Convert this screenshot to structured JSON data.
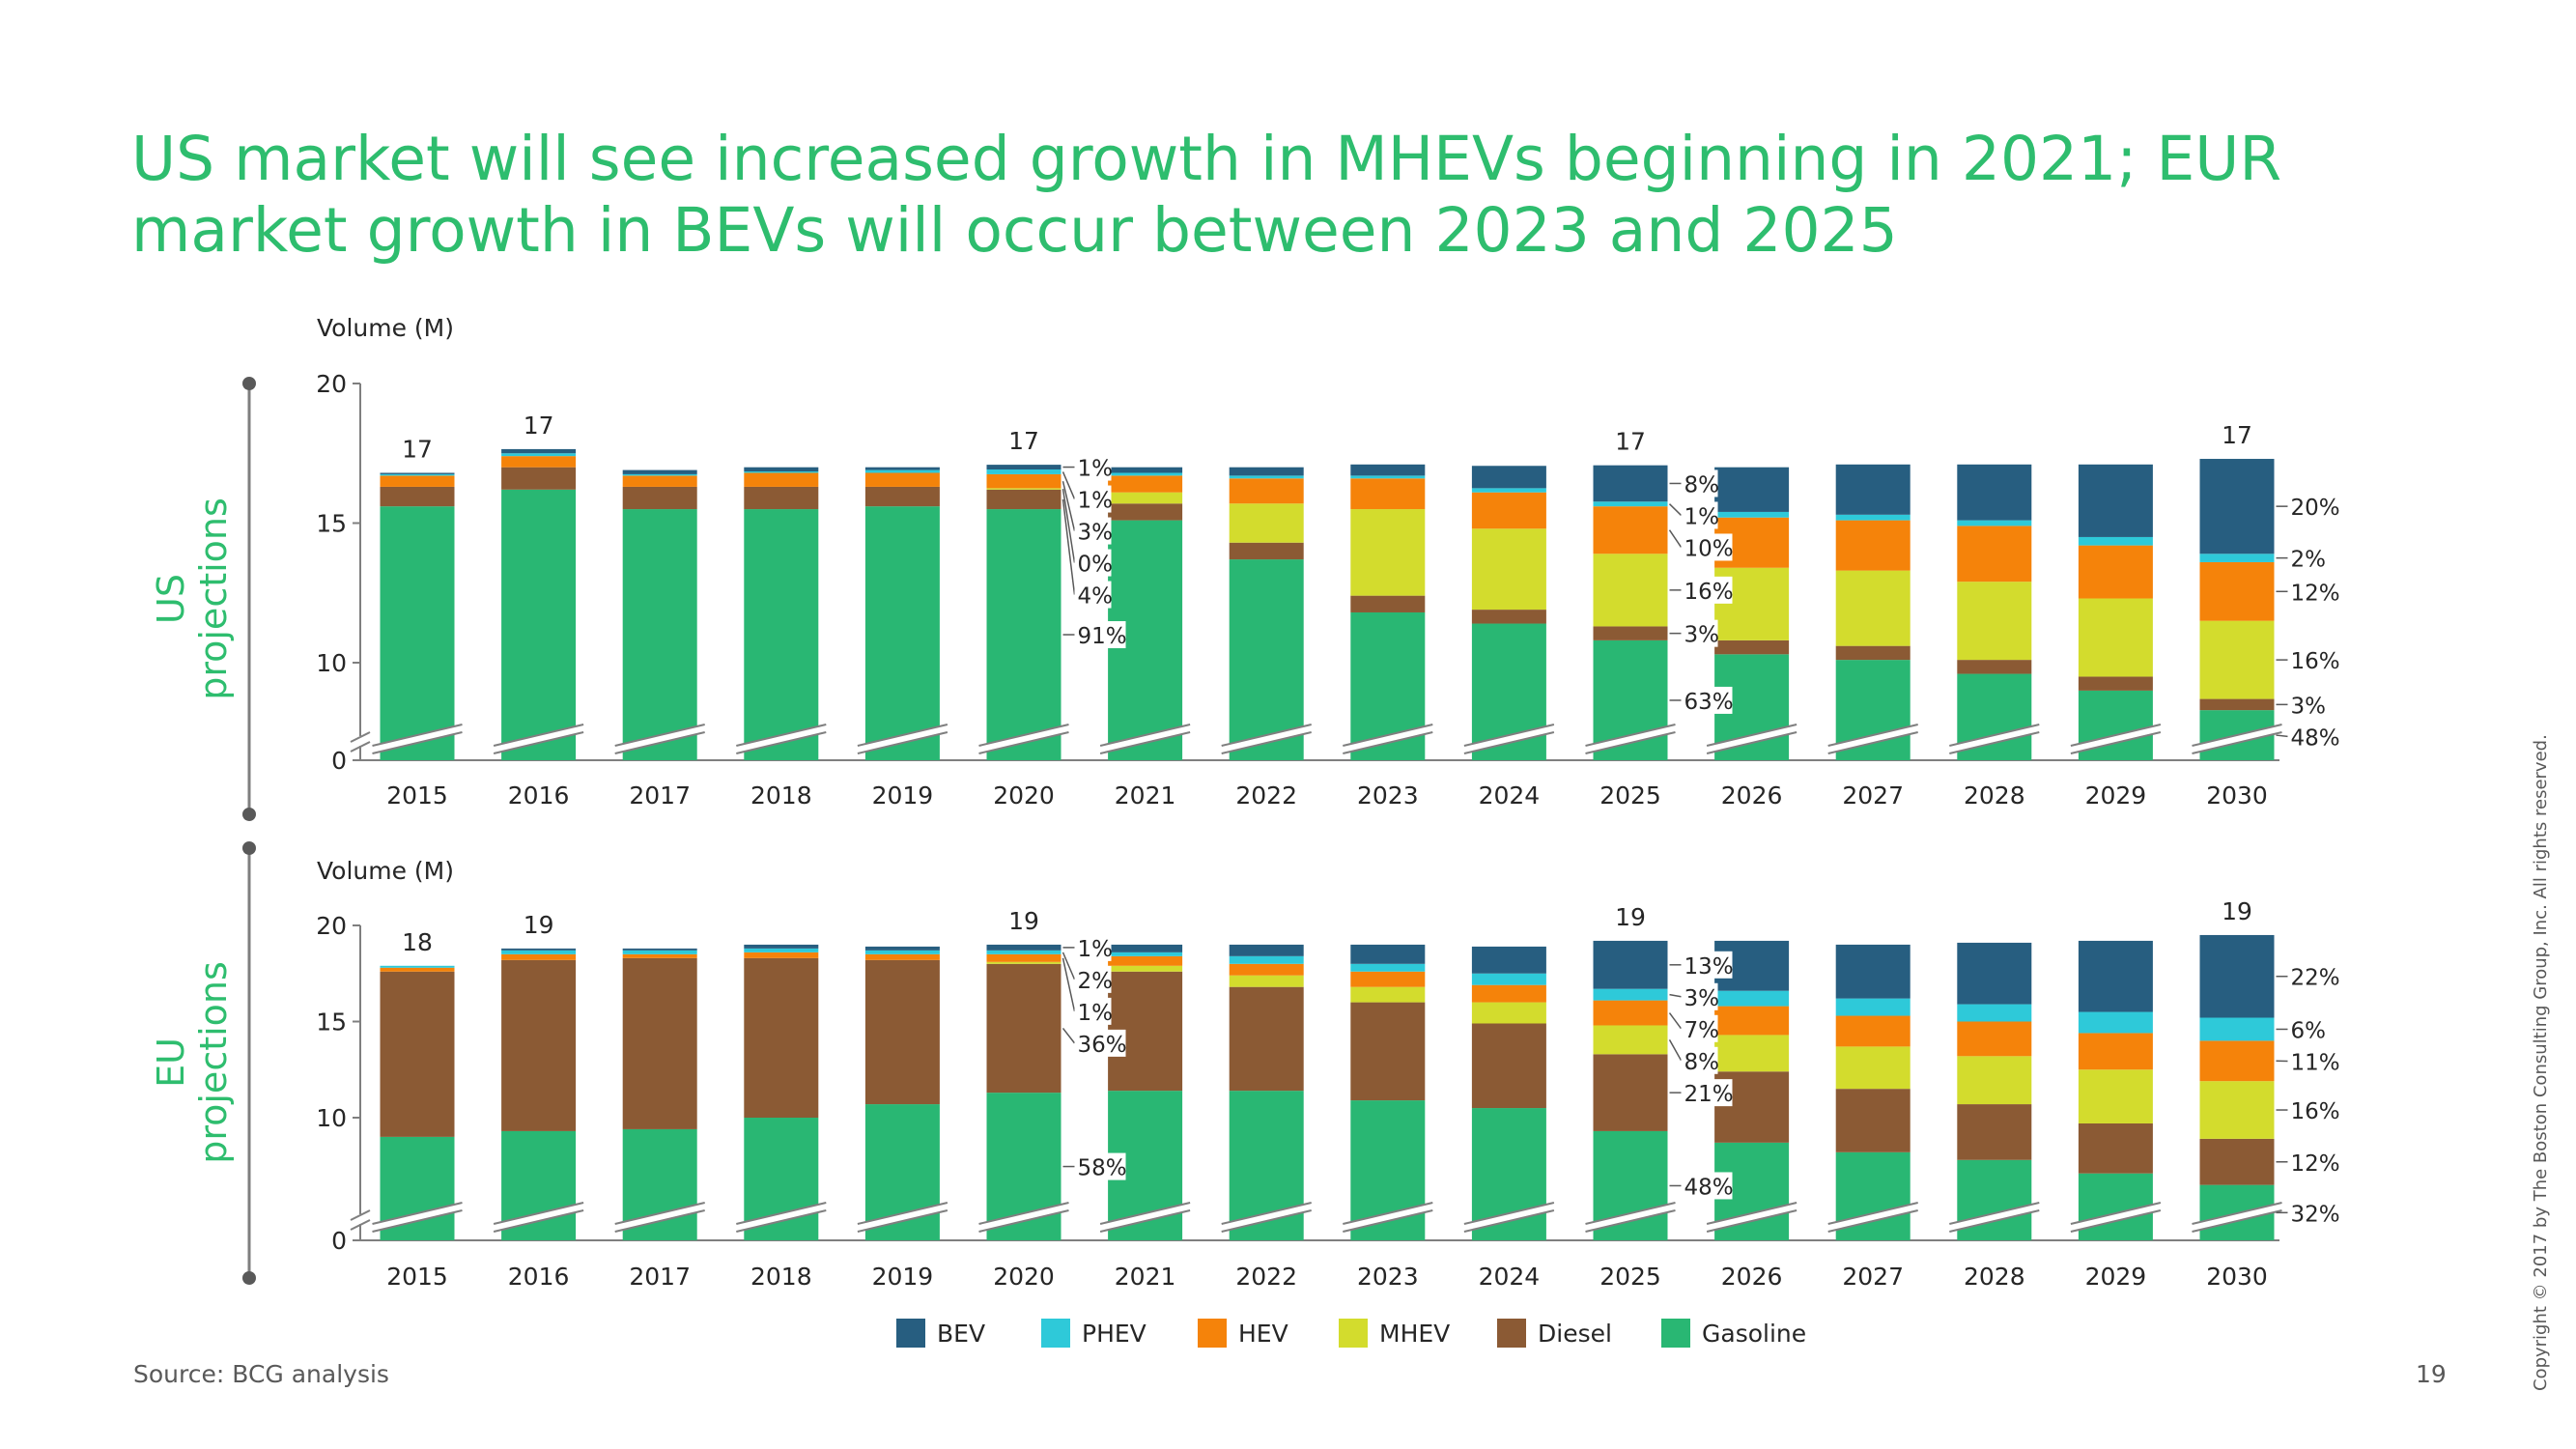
{
  "title": "US market will see increased growth in MHEVs beginning in 2021; EUR market growth in BEVs will occur between 2023 and 2025",
  "source": "Source: BCG analysis",
  "page_number": "19",
  "copyright": "Copyright © 2017 by The Boston Consulting Group, Inc. All rights reserved.",
  "colors": {
    "BEV": "#275e80",
    "PHEV": "#2ec9d9",
    "HEV": "#f5830a",
    "MHEV": "#d3dc2d",
    "Diesel": "#8b5a34",
    "Gasoline": "#29b773",
    "title": "#2ebd6e"
  },
  "chart_data": [
    {
      "type": "bar",
      "stacked": true,
      "panel_label": "US\nprojections",
      "ylabel": "Volume (M)",
      "yticks": [
        "0",
        "10",
        "15",
        "20"
      ],
      "ylim": [
        0,
        20
      ],
      "axis_break": true,
      "categories": [
        "2015",
        "2016",
        "2017",
        "2018",
        "2019",
        "2020",
        "2021",
        "2022",
        "2023",
        "2024",
        "2025",
        "2026",
        "2027",
        "2028",
        "2029",
        "2030"
      ],
      "series": [
        {
          "name": "Gasoline",
          "values": [
            15.6,
            16.2,
            15.5,
            15.5,
            15.6,
            15.5,
            15.1,
            13.7,
            11.8,
            11.4,
            10.8,
            10.3,
            10.1,
            9.6,
            9.0,
            8.3
          ]
        },
        {
          "name": "Diesel",
          "values": [
            0.7,
            0.8,
            0.8,
            0.8,
            0.7,
            0.7,
            0.6,
            0.6,
            0.6,
            0.5,
            0.5,
            0.5,
            0.5,
            0.5,
            0.5,
            0.4
          ]
        },
        {
          "name": "MHEV",
          "values": [
            0,
            0,
            0,
            0,
            0,
            0.05,
            0.4,
            1.4,
            3.1,
            2.9,
            2.6,
            2.6,
            2.7,
            2.8,
            2.8,
            2.8
          ]
        },
        {
          "name": "HEV",
          "values": [
            0.4,
            0.4,
            0.4,
            0.5,
            0.5,
            0.5,
            0.6,
            0.9,
            1.1,
            1.3,
            1.7,
            1.8,
            1.8,
            2.0,
            1.9,
            2.1
          ]
        },
        {
          "name": "PHEV",
          "values": [
            0.05,
            0.1,
            0.05,
            0.05,
            0.1,
            0.17,
            0.1,
            0.1,
            0.1,
            0.15,
            0.17,
            0.2,
            0.2,
            0.2,
            0.3,
            0.3
          ]
        },
        {
          "name": "BEV",
          "values": [
            0.05,
            0.15,
            0.15,
            0.15,
            0.1,
            0.17,
            0.2,
            0.3,
            0.4,
            0.8,
            1.3,
            1.6,
            1.8,
            2.0,
            2.6,
            3.4
          ]
        }
      ],
      "total_labels": [
        {
          "category": "2015",
          "text": "17"
        },
        {
          "category": "2016",
          "text": "17"
        },
        {
          "category": "2020",
          "text": "17"
        },
        {
          "category": "2025",
          "text": "17"
        },
        {
          "category": "2030",
          "text": "17"
        }
      ],
      "share_labels": [
        {
          "category": "2020",
          "labels": [
            {
              "series": "BEV",
              "text": "1%"
            },
            {
              "series": "PHEV",
              "text": "1%"
            },
            {
              "series": "HEV",
              "text": "3%"
            },
            {
              "series": "MHEV",
              "text": "0%"
            },
            {
              "series": "Diesel",
              "text": "4%"
            },
            {
              "series": "Gasoline",
              "text": "91%"
            }
          ]
        },
        {
          "category": "2025",
          "labels": [
            {
              "series": "BEV",
              "text": "8%"
            },
            {
              "series": "PHEV",
              "text": "1%"
            },
            {
              "series": "HEV",
              "text": "10%"
            },
            {
              "series": "MHEV",
              "text": "16%"
            },
            {
              "series": "Diesel",
              "text": "3%"
            },
            {
              "series": "Gasoline",
              "text": "63%"
            }
          ]
        },
        {
          "category": "2030",
          "labels": [
            {
              "series": "BEV",
              "text": "20%"
            },
            {
              "series": "PHEV",
              "text": "2%"
            },
            {
              "series": "HEV",
              "text": "12%"
            },
            {
              "series": "MHEV",
              "text": "16%"
            },
            {
              "series": "Diesel",
              "text": "3%"
            },
            {
              "series": "Gasoline",
              "text": "48%"
            }
          ]
        }
      ]
    },
    {
      "type": "bar",
      "stacked": true,
      "panel_label": "EU\nprojections",
      "ylabel": "Volume (M)",
      "yticks": [
        "0",
        "10",
        "15",
        "20"
      ],
      "ylim": [
        0,
        20
      ],
      "axis_break": true,
      "categories": [
        "2015",
        "2016",
        "2017",
        "2018",
        "2019",
        "2020",
        "2021",
        "2022",
        "2023",
        "2024",
        "2025",
        "2026",
        "2027",
        "2028",
        "2029",
        "2030"
      ],
      "series": [
        {
          "name": "Gasoline",
          "values": [
            9.0,
            9.3,
            9.4,
            10.0,
            10.7,
            11.3,
            11.4,
            11.4,
            10.9,
            10.5,
            9.3,
            8.7,
            8.2,
            7.8,
            7.1,
            6.5
          ]
        },
        {
          "name": "Diesel",
          "values": [
            8.6,
            8.9,
            8.9,
            8.3,
            7.5,
            6.7,
            6.2,
            5.4,
            5.1,
            4.4,
            4.0,
            3.7,
            3.3,
            2.9,
            2.6,
            2.4
          ]
        },
        {
          "name": "MHEV",
          "values": [
            0,
            0,
            0,
            0,
            0,
            0.1,
            0.3,
            0.6,
            0.8,
            1.1,
            1.5,
            1.9,
            2.2,
            2.5,
            2.8,
            3.0
          ]
        },
        {
          "name": "HEV",
          "values": [
            0.2,
            0.3,
            0.2,
            0.3,
            0.3,
            0.4,
            0.5,
            0.6,
            0.8,
            0.9,
            1.3,
            1.5,
            1.6,
            1.8,
            1.9,
            2.1
          ]
        },
        {
          "name": "PHEV",
          "values": [
            0.1,
            0.2,
            0.2,
            0.2,
            0.2,
            0.2,
            0.2,
            0.4,
            0.4,
            0.6,
            0.6,
            0.8,
            0.9,
            0.9,
            1.1,
            1.2
          ]
        },
        {
          "name": "BEV",
          "values": [
            0,
            0.1,
            0.1,
            0.2,
            0.2,
            0.3,
            0.4,
            0.6,
            1.0,
            1.4,
            2.5,
            2.6,
            2.8,
            3.2,
            3.7,
            4.3
          ]
        }
      ],
      "total_labels": [
        {
          "category": "2015",
          "text": "18"
        },
        {
          "category": "2016",
          "text": "19"
        },
        {
          "category": "2020",
          "text": "19"
        },
        {
          "category": "2025",
          "text": "19"
        },
        {
          "category": "2030",
          "text": "19"
        }
      ],
      "share_labels": [
        {
          "category": "2020",
          "labels": [
            {
              "series": "BEV",
              "text": "1%"
            },
            {
              "series": "PHEV",
              "text": "2%"
            },
            {
              "series": "HEV",
              "text": "1%"
            },
            {
              "series": "Diesel",
              "text": "36%"
            },
            {
              "series": "Gasoline",
              "text": "58%"
            }
          ]
        },
        {
          "category": "2025",
          "labels": [
            {
              "series": "BEV",
              "text": "13%"
            },
            {
              "series": "PHEV",
              "text": "3%"
            },
            {
              "series": "HEV",
              "text": "7%"
            },
            {
              "series": "MHEV",
              "text": "8%"
            },
            {
              "series": "Diesel",
              "text": "21%"
            },
            {
              "series": "Gasoline",
              "text": "48%"
            }
          ]
        },
        {
          "category": "2030",
          "labels": [
            {
              "series": "BEV",
              "text": "22%"
            },
            {
              "series": "PHEV",
              "text": "6%"
            },
            {
              "series": "HEV",
              "text": "11%"
            },
            {
              "series": "MHEV",
              "text": "16%"
            },
            {
              "series": "Diesel",
              "text": "12%"
            },
            {
              "series": "Gasoline",
              "text": "32%"
            }
          ]
        }
      ]
    }
  ],
  "legend": [
    {
      "name": "BEV",
      "color_key": "BEV"
    },
    {
      "name": "PHEV",
      "color_key": "PHEV"
    },
    {
      "name": "HEV",
      "color_key": "HEV"
    },
    {
      "name": "MHEV",
      "color_key": "MHEV"
    },
    {
      "name": "Diesel",
      "color_key": "Diesel"
    },
    {
      "name": "Gasoline",
      "color_key": "Gasoline"
    }
  ]
}
